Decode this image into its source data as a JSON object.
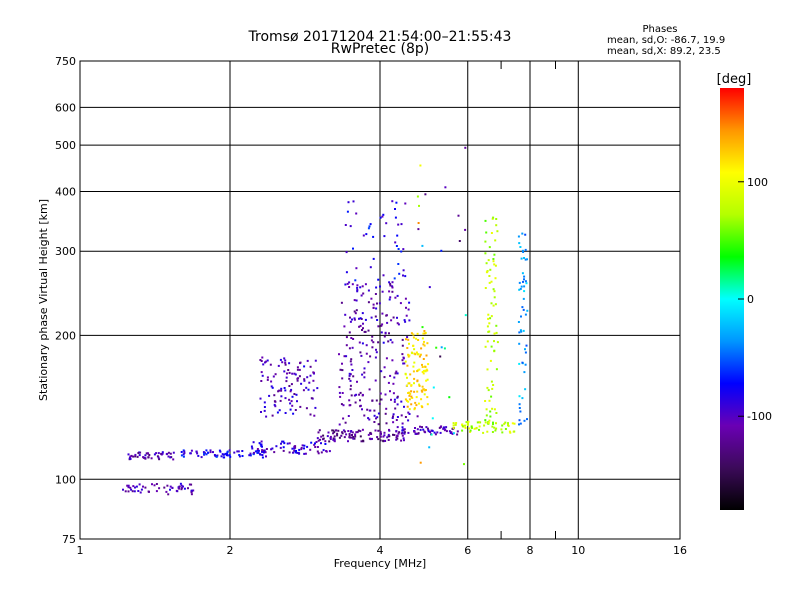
{
  "chart_data": {
    "type": "scatter",
    "title": "Tromsø 20171204 21:54:00–21:55:43",
    "subtitle": "RwPretec (8p)",
    "xlabel": "Frequency [MHz]",
    "ylabel": "Stationary phase Virtual Height [km]",
    "x_scale": "log",
    "y_scale": "log",
    "xlim": [
      1,
      16
    ],
    "ylim": [
      75,
      750
    ],
    "x_ticks": [
      1,
      2,
      4,
      6,
      8,
      10,
      16
    ],
    "y_ticks": [
      75,
      100,
      200,
      300,
      400,
      500,
      600,
      750
    ],
    "x_ticks_unlabeled": [
      7,
      9
    ],
    "grid": true,
    "phases_box": {
      "title": "Phases",
      "line1": "mean, sd,O: -86.7, 19.9",
      "line2": "mean, sd,X:  89.2, 23.5"
    },
    "colorbar": {
      "label": "[deg]",
      "range": [
        -180,
        180
      ],
      "ticks": [
        100,
        0,
        -100
      ],
      "colors": [
        "#000000",
        "#3c0a5a",
        "#6a00b4",
        "#0000ff",
        "#0096ff",
        "#00ffff",
        "#00ff00",
        "#b4ff00",
        "#ffff00",
        "#ff9600",
        "#ff0000"
      ]
    },
    "series": [
      {
        "x_range": [
          1.25,
          1.55
        ],
        "y_range": [
          110,
          114
        ],
        "phase": -110,
        "n": 45
      },
      {
        "x_range": [
          1.2,
          1.7
        ],
        "y_range": [
          93,
          98
        ],
        "phase": -105,
        "n": 55
      },
      {
        "x_range": [
          1.6,
          2.4
        ],
        "y_range": [
          111,
          115
        ],
        "phase": -80,
        "n": 70
      },
      {
        "x_range": [
          2.2,
          3.2
        ],
        "y_range": [
          113,
          120
        ],
        "phase": -95,
        "n": 70
      },
      {
        "x_range": [
          3.0,
          4.5
        ],
        "y_range": [
          120,
          127
        ],
        "phase": -120,
        "n": 110
      },
      {
        "x_range": [
          4.3,
          5.8
        ],
        "y_range": [
          124,
          129
        ],
        "phase": -105,
        "n": 60
      },
      {
        "x_range": [
          5.6,
          7.5
        ],
        "y_range": [
          125,
          132
        ],
        "phase": 80,
        "n": 60
      },
      {
        "x_range": [
          2.3,
          3.0
        ],
        "y_range": [
          135,
          180
        ],
        "phase": -100,
        "n": 110
      },
      {
        "x_range": [
          3.3,
          4.6
        ],
        "y_range": [
          130,
          260
        ],
        "phase": -105,
        "n": 240
      },
      {
        "x_range": [
          3.4,
          4.5
        ],
        "y_range": [
          260,
          390
        ],
        "phase": -80,
        "n": 45
      },
      {
        "x_range": [
          4.5,
          5.0
        ],
        "y_range": [
          140,
          205
        ],
        "phase": 115,
        "n": 110
      },
      {
        "x_range": [
          6.5,
          6.9
        ],
        "y_range": [
          130,
          360
        ],
        "phase": 75,
        "n": 75
      },
      {
        "x_range": [
          7.6,
          7.9
        ],
        "y_range": [
          130,
          330
        ],
        "phase": -30,
        "n": 55
      },
      {
        "x_range": [
          4.7,
          6.0
        ],
        "y_range": [
          100,
          500
        ],
        "phase": 0,
        "n": 30,
        "spread": true
      }
    ]
  }
}
